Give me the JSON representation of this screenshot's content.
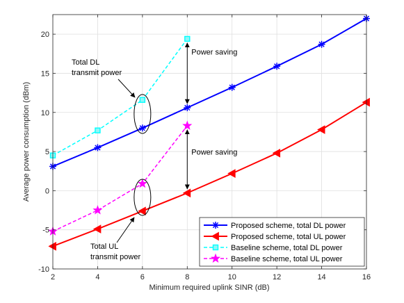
{
  "chart_data": {
    "type": "line",
    "xlabel": "Minimum required uplink SINR (dB)",
    "ylabel": "Average power consumption (dBm)",
    "xlim": [
      2,
      16
    ],
    "ylim": [
      -10,
      22.5
    ],
    "xticks": [
      2,
      4,
      6,
      8,
      10,
      12,
      14,
      16
    ],
    "yticks": [
      -10,
      -5,
      0,
      5,
      10,
      15,
      20
    ],
    "grid": true,
    "legend_position": "bottom-right",
    "series": [
      {
        "name": "Proposed scheme, total DL power",
        "color": "#0000ff",
        "line": "solid",
        "marker": "asterisk",
        "x": [
          2,
          4,
          6,
          8,
          10,
          12,
          14,
          16
        ],
        "y": [
          3.1,
          5.5,
          8.0,
          10.6,
          13.2,
          15.9,
          18.7,
          22.0
        ]
      },
      {
        "name": "Proposed scheme, total UL power",
        "color": "#ff0000",
        "line": "solid",
        "marker": "left-triangle",
        "x": [
          2,
          4,
          6,
          8,
          10,
          12,
          14,
          16
        ],
        "y": [
          -7.1,
          -4.9,
          -2.6,
          -0.3,
          2.2,
          4.8,
          7.8,
          11.3
        ]
      },
      {
        "name": "Baseline scheme, total DL power",
        "color": "#00ffff",
        "line": "dashed",
        "marker": "square",
        "x": [
          2,
          4,
          6,
          8
        ],
        "y": [
          4.5,
          7.7,
          11.6,
          19.4
        ]
      },
      {
        "name": "Baseline scheme, total UL power",
        "color": "#ff00ff",
        "line": "dashed",
        "marker": "star",
        "x": [
          2,
          4,
          6,
          8
        ],
        "y": [
          -5.2,
          -2.5,
          0.9,
          8.3
        ]
      }
    ],
    "annotations": [
      {
        "id": "dl-label",
        "lines": [
          "Total DL",
          "transmit power"
        ]
      },
      {
        "id": "ul-label",
        "lines": [
          "Total UL",
          "transmit power"
        ]
      },
      {
        "id": "saving-top",
        "text": "Power saving",
        "x": 8,
        "y_from": 19.4,
        "y_to": 10.6
      },
      {
        "id": "saving-bottom",
        "text": "Power saving",
        "x": 8,
        "y_from": 8.3,
        "y_to": -0.3
      }
    ]
  }
}
